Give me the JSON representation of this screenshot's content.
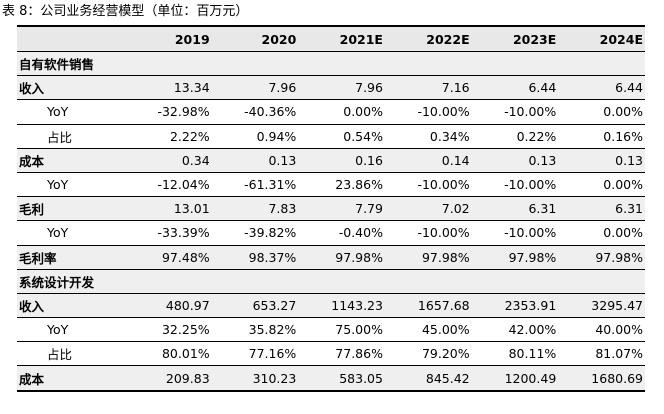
{
  "title": "表 8：公司业务经营模型（单位：百万元）",
  "columns": [
    "",
    "2019",
    "2020",
    "2021E",
    "2022E",
    "2023E",
    "2024E"
  ],
  "rows": [
    {
      "type": "section",
      "label": "自有软件销售",
      "values": []
    },
    {
      "type": "main",
      "label": "收入",
      "values": [
        "13.34",
        "7.96",
        "7.96",
        "7.16",
        "6.44",
        "6.44"
      ]
    },
    {
      "type": "sub",
      "label": "YoY",
      "values": [
        "-32.98%",
        "-40.36%",
        "0.00%",
        "-10.00%",
        "-10.00%",
        "0.00%"
      ]
    },
    {
      "type": "sub",
      "label": "占比",
      "values": [
        "2.22%",
        "0.94%",
        "0.54%",
        "0.34%",
        "0.22%",
        "0.16%"
      ]
    },
    {
      "type": "main",
      "label": "成本",
      "values": [
        "0.34",
        "0.13",
        "0.16",
        "0.14",
        "0.13",
        "0.13"
      ]
    },
    {
      "type": "sub",
      "label": "YoY",
      "values": [
        "-12.04%",
        "-61.31%",
        "23.86%",
        "-10.00%",
        "-10.00%",
        "0.00%"
      ]
    },
    {
      "type": "main",
      "label": "毛利",
      "values": [
        "13.01",
        "7.83",
        "7.79",
        "7.02",
        "6.31",
        "6.31"
      ]
    },
    {
      "type": "sub",
      "label": "YoY",
      "values": [
        "-33.39%",
        "-39.82%",
        "-0.40%",
        "-10.00%",
        "-10.00%",
        "0.00%"
      ]
    },
    {
      "type": "main",
      "label": "毛利率",
      "values": [
        "97.48%",
        "98.37%",
        "97.98%",
        "97.98%",
        "97.98%",
        "97.98%"
      ]
    },
    {
      "type": "section",
      "label": "系统设计开发",
      "values": []
    },
    {
      "type": "main",
      "label": "收入",
      "values": [
        "480.97",
        "653.27",
        "1143.23",
        "1657.68",
        "2353.91",
        "3295.47"
      ]
    },
    {
      "type": "sub",
      "label": "YoY",
      "values": [
        "32.25%",
        "35.82%",
        "75.00%",
        "45.00%",
        "42.00%",
        "40.00%"
      ]
    },
    {
      "type": "sub",
      "label": "占比",
      "values": [
        "80.01%",
        "77.16%",
        "77.86%",
        "79.20%",
        "80.11%",
        "81.07%"
      ]
    },
    {
      "type": "main",
      "label": "成本",
      "values": [
        "209.83",
        "310.23",
        "583.05",
        "845.42",
        "1200.49",
        "1680.69"
      ]
    }
  ]
}
